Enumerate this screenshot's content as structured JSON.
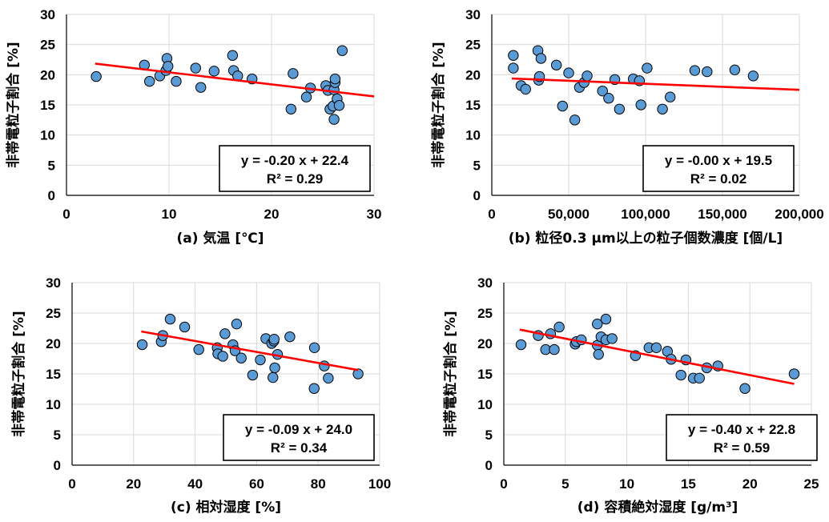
{
  "chart_data": [
    {
      "type": "scatter",
      "xlabel": "(a) 気温 [℃]",
      "ylabel": "非帯電粒子割合 [%]",
      "xlim": [
        0,
        30
      ],
      "ylim": [
        0,
        30
      ],
      "xticks": [
        "0",
        "10",
        "20",
        "30"
      ],
      "yticks": [
        "0",
        "5",
        "10",
        "15",
        "20",
        "25",
        "30"
      ],
      "grid": true,
      "marker_color": "#5b9bd5",
      "trend_color": "#ff0000",
      "trendline": {
        "slope": -0.2,
        "intercept": 22.4,
        "x_range": [
          2.8,
          30
        ]
      },
      "equation": "y = -0.20 x + 22.4",
      "r2": "R² = 0.29",
      "points": [
        [
          2.9,
          19.7
        ],
        [
          7.6,
          21.6
        ],
        [
          8.1,
          18.9
        ],
        [
          9.1,
          19.8
        ],
        [
          9.7,
          20.7
        ],
        [
          9.8,
          22.7
        ],
        [
          9.9,
          21.4
        ],
        [
          10.7,
          18.9
        ],
        [
          12.6,
          21.1
        ],
        [
          13.1,
          17.9
        ],
        [
          14.4,
          20.6
        ],
        [
          16.2,
          23.2
        ],
        [
          16.3,
          20.7
        ],
        [
          16.7,
          19.8
        ],
        [
          18.1,
          19.3
        ],
        [
          21.9,
          14.3
        ],
        [
          22.1,
          20.2
        ],
        [
          23.4,
          16.3
        ],
        [
          23.8,
          17.8
        ],
        [
          25.3,
          18.2
        ],
        [
          25.5,
          17.4
        ],
        [
          25.7,
          14.3
        ],
        [
          26.0,
          14.8
        ],
        [
          26.1,
          12.6
        ],
        [
          26.1,
          17.5
        ],
        [
          26.2,
          18.7
        ],
        [
          26.2,
          19.3
        ],
        [
          26.4,
          16.0
        ],
        [
          26.6,
          14.9
        ],
        [
          26.9,
          24.0
        ]
      ]
    },
    {
      "type": "scatter",
      "xlabel": "(b) 粒径0.3 μm以上の粒子個数濃度 [個/L]",
      "ylabel": "非帯電粒子割合 [%]",
      "xlim": [
        0,
        200000
      ],
      "ylim": [
        0,
        30
      ],
      "xticks": [
        "0",
        "50,000",
        "100,000",
        "150,000",
        "200,000"
      ],
      "yticks": [
        "0",
        "5",
        "10",
        "15",
        "20",
        "25",
        "30"
      ],
      "grid": true,
      "marker_color": "#5b9bd5",
      "trend_color": "#ff0000",
      "trendline": {
        "slope": -1e-05,
        "intercept": 19.5,
        "x_range": [
          13000,
          200000
        ]
      },
      "equation": "y = -0.00 x + 19.5",
      "r2": "R² = 0.02",
      "points": [
        [
          14000,
          23.2
        ],
        [
          14000,
          21.1
        ],
        [
          19000,
          18.2
        ],
        [
          22000,
          17.6
        ],
        [
          30000,
          24.0
        ],
        [
          30500,
          19.1
        ],
        [
          31000,
          19.7
        ],
        [
          32000,
          22.7
        ],
        [
          42000,
          21.6
        ],
        [
          46000,
          14.8
        ],
        [
          50000,
          20.3
        ],
        [
          54000,
          12.5
        ],
        [
          57000,
          17.9
        ],
        [
          60000,
          18.7
        ],
        [
          62000,
          19.8
        ],
        [
          72000,
          17.3
        ],
        [
          76000,
          16.1
        ],
        [
          80000,
          19.2
        ],
        [
          83000,
          14.3
        ],
        [
          92000,
          19.3
        ],
        [
          96000,
          19.0
        ],
        [
          97000,
          15.0
        ],
        [
          101000,
          21.1
        ],
        [
          111000,
          14.3
        ],
        [
          116000,
          16.3
        ],
        [
          132000,
          20.7
        ],
        [
          140000,
          20.5
        ],
        [
          158000,
          20.8
        ],
        [
          170000,
          19.8
        ]
      ]
    },
    {
      "type": "scatter",
      "xlabel": "(c) 相対湿度 [%]",
      "ylabel": "非帯電粒子割合 [%]",
      "xlim": [
        0,
        100
      ],
      "ylim": [
        0,
        30
      ],
      "xticks": [
        "0",
        "20",
        "40",
        "60",
        "80",
        "100"
      ],
      "yticks": [
        "0",
        "5",
        "10",
        "15",
        "20",
        "25",
        "30"
      ],
      "grid": true,
      "marker_color": "#5b9bd5",
      "trend_color": "#ff0000",
      "trendline": {
        "slope": -0.09,
        "intercept": 24.0,
        "x_range": [
          22.5,
          93
        ]
      },
      "equation": "y = -0.09 x + 24.0",
      "r2": "R² = 0.34",
      "points": [
        [
          22.8,
          19.8
        ],
        [
          29.0,
          20.3
        ],
        [
          29.5,
          21.3
        ],
        [
          31.9,
          24.0
        ],
        [
          36.6,
          22.7
        ],
        [
          41.2,
          19.0
        ],
        [
          47.2,
          19.3
        ],
        [
          47.4,
          18.3
        ],
        [
          49.0,
          17.9
        ],
        [
          49.7,
          21.6
        ],
        [
          52.3,
          19.8
        ],
        [
          53.5,
          23.2
        ],
        [
          53.0,
          18.8
        ],
        [
          55.0,
          17.6
        ],
        [
          58.7,
          14.8
        ],
        [
          61.2,
          17.3
        ],
        [
          63.0,
          20.8
        ],
        [
          64.9,
          20.0
        ],
        [
          65.3,
          14.4
        ],
        [
          65.6,
          20.4
        ],
        [
          65.7,
          20.7
        ],
        [
          65.9,
          16.0
        ],
        [
          66.8,
          18.2
        ],
        [
          70.8,
          21.1
        ],
        [
          78.8,
          19.3
        ],
        [
          78.7,
          12.6
        ],
        [
          82.0,
          16.3
        ],
        [
          83.3,
          14.3
        ],
        [
          93.0,
          15.0
        ]
      ]
    },
    {
      "type": "scatter",
      "xlabel": "(d) 容積絶対湿度 [g/m³]",
      "ylabel": "非帯電粒子割合 [%]",
      "xlim": [
        0,
        25
      ],
      "ylim": [
        0,
        30
      ],
      "xticks": [
        "0",
        "5",
        "10",
        "15",
        "20",
        "25"
      ],
      "yticks": [
        "0",
        "5",
        "10",
        "15",
        "20",
        "25",
        "30"
      ],
      "grid": true,
      "marker_color": "#5b9bd5",
      "trend_color": "#ff0000",
      "trendline": {
        "slope": -0.4,
        "intercept": 22.8,
        "x_range": [
          1.3,
          23.6
        ]
      },
      "equation": "y = -0.40 x + 22.8",
      "r2": "R² = 0.59",
      "points": [
        [
          1.4,
          19.8
        ],
        [
          2.8,
          21.3
        ],
        [
          3.4,
          19.0
        ],
        [
          3.8,
          21.6
        ],
        [
          4.1,
          19.0
        ],
        [
          4.5,
          22.7
        ],
        [
          5.8,
          19.9
        ],
        [
          5.9,
          20.3
        ],
        [
          6.3,
          20.6
        ],
        [
          7.6,
          19.7
        ],
        [
          7.7,
          18.2
        ],
        [
          7.6,
          23.2
        ],
        [
          7.9,
          21.1
        ],
        [
          8.3,
          24.0
        ],
        [
          8.3,
          20.6
        ],
        [
          8.8,
          20.8
        ],
        [
          10.7,
          18.0
        ],
        [
          11.8,
          19.3
        ],
        [
          12.4,
          19.3
        ],
        [
          13.3,
          18.7
        ],
        [
          13.6,
          17.4
        ],
        [
          14.4,
          14.8
        ],
        [
          14.8,
          17.3
        ],
        [
          15.4,
          14.3
        ],
        [
          15.9,
          14.3
        ],
        [
          16.5,
          16.0
        ],
        [
          17.4,
          16.3
        ],
        [
          19.6,
          12.6
        ],
        [
          23.6,
          15.0
        ]
      ]
    }
  ]
}
